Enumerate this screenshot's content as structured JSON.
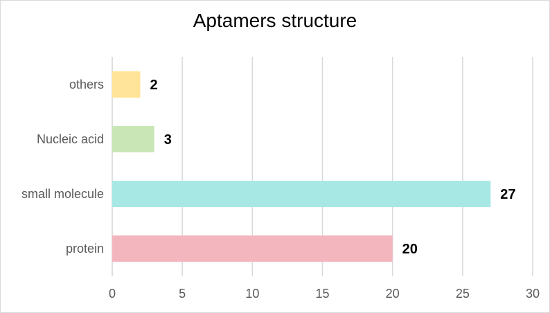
{
  "chart_data": {
    "type": "bar",
    "orientation": "horizontal",
    "title": "Aptamers structure",
    "xlabel": "",
    "ylabel": "",
    "xlim": [
      0,
      30
    ],
    "x_ticks": [
      0,
      5,
      10,
      15,
      20,
      25,
      30
    ],
    "grid": "vertical",
    "legend": "none",
    "categories": [
      "protein",
      "small molecule",
      "Nucleic acid",
      "others"
    ],
    "values": [
      20,
      27,
      3,
      2
    ],
    "colors": [
      "#f4b6be",
      "#a8e8e4",
      "#c9e6b7",
      "#ffe49a"
    ],
    "data_labels": [
      "20",
      "27",
      "3",
      "2"
    ]
  },
  "colors": {
    "gridline": "#d9d9d9",
    "axis_text": "#595959",
    "frame_border": "#d9d9d9"
  }
}
